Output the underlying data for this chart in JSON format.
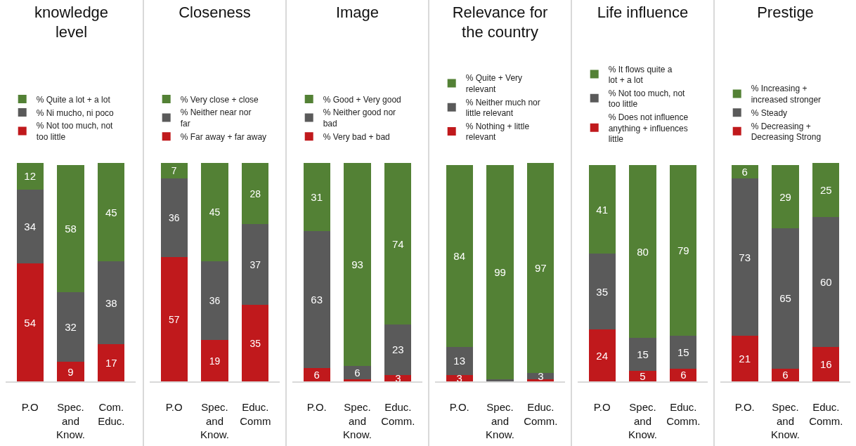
{
  "chart_data": [
    {
      "type": "bar",
      "title": "knowledge level",
      "stacked": true,
      "legend": "top",
      "categories": [
        "P.O",
        "Spec. and Know.",
        "Com. Educ."
      ],
      "series": [
        {
          "name": "% Not too much, not too little",
          "color": "#c0191c",
          "values": [
            54,
            9,
            17
          ],
          "value_labels": [
            "54",
            "9",
            "17"
          ]
        },
        {
          "name": "% Ni mucho, ni poco",
          "color": "#5a5a5a",
          "values": [
            34,
            32,
            38
          ],
          "value_labels": [
            "34",
            "32",
            "38"
          ]
        },
        {
          "name": "% Quite a lot + a lot",
          "color": "#538135",
          "values": [
            12,
            58,
            45
          ],
          "value_labels": [
            "12",
            "58",
            "45"
          ]
        }
      ]
    },
    {
      "type": "bar",
      "title": "Closeness",
      "stacked": true,
      "legend": "top",
      "categories": [
        "P.O",
        "Spec. and Know.",
        "Educ. Comm"
      ],
      "series": [
        {
          "name": "% Far away + far away",
          "color": "#c0191c",
          "values": [
            57,
            19,
            35
          ],
          "value_labels": [
            "57",
            "19",
            "35"
          ]
        },
        {
          "name": "% Neither near nor far",
          "color": "#5a5a5a",
          "values": [
            36,
            36,
            37
          ],
          "value_labels": [
            "36",
            "36",
            "37"
          ]
        },
        {
          "name": "% Very close + close",
          "color": "#538135",
          "values": [
            7,
            45,
            28
          ],
          "value_labels": [
            "7",
            "45",
            "28"
          ]
        }
      ]
    },
    {
      "type": "bar",
      "title": "Image",
      "stacked": true,
      "legend": "top",
      "categories": [
        "P.O.",
        "Spec. and Know.",
        "Educ. Comm."
      ],
      "series": [
        {
          "name": "% Very bad + bad",
          "color": "#c0191c",
          "values": [
            6,
            1,
            3
          ],
          "value_labels": [
            "6",
            null,
            "3"
          ]
        },
        {
          "name": "% Neither good nor bad",
          "color": "#5a5a5a",
          "values": [
            63,
            6,
            23
          ],
          "value_labels": [
            "63",
            "6",
            "23"
          ]
        },
        {
          "name": "% Good + Very good",
          "color": "#538135",
          "values": [
            31,
            93,
            74
          ],
          "value_labels": [
            "31",
            "93",
            "74"
          ]
        }
      ]
    },
    {
      "type": "bar",
      "title": "Relevance for the country",
      "stacked": true,
      "legend": "top",
      "categories": [
        "P.O.",
        "Spec. and Know.",
        "Educ. Comm."
      ],
      "series": [
        {
          "name": "% Nothing + little relevant",
          "color": "#c0191c",
          "values": [
            3,
            0,
            1
          ],
          "value_labels": [
            "3",
            null,
            null
          ]
        },
        {
          "name": "% Neither much nor little relevant",
          "color": "#5a5a5a",
          "values": [
            13,
            1,
            3
          ],
          "value_labels": [
            "13",
            null,
            "3"
          ]
        },
        {
          "name": "% Quite + Very relevant",
          "color": "#538135",
          "values": [
            84,
            99,
            97
          ],
          "value_labels": [
            "84",
            "99",
            "97"
          ]
        }
      ]
    },
    {
      "type": "bar",
      "title": "Life influence",
      "stacked": true,
      "legend": "top",
      "categories": [
        "P.O",
        "Spec. and Know.",
        "Educ. Comm."
      ],
      "series": [
        {
          "name": "% Does not influence anything + influences little",
          "color": "#c0191c",
          "values": [
            24,
            5,
            6
          ],
          "value_labels": [
            "24",
            "5",
            "6"
          ]
        },
        {
          "name": "% Not too much, not too little",
          "color": "#5a5a5a",
          "values": [
            35,
            15,
            15
          ],
          "value_labels": [
            "35",
            "15",
            "15"
          ]
        },
        {
          "name": "% It flows quite a lot + a lot",
          "color": "#538135",
          "values": [
            41,
            80,
            79
          ],
          "value_labels": [
            "41",
            "80",
            "79"
          ]
        }
      ]
    },
    {
      "type": "bar",
      "title": "Prestige",
      "stacked": true,
      "legend": "top",
      "categories": [
        "P.O.",
        "Spec. and Know.",
        "Educ. Comm."
      ],
      "series": [
        {
          "name": "% Decreasing + Decreasing Strong",
          "color": "#c0191c",
          "values": [
            21,
            6,
            16
          ],
          "value_labels": [
            "21",
            "6",
            "16"
          ]
        },
        {
          "name": "% Steady",
          "color": "#5a5a5a",
          "values": [
            73,
            65,
            60
          ],
          "value_labels": [
            "73",
            "65",
            "60"
          ]
        },
        {
          "name": "% Increasing + increased stronger",
          "color": "#538135",
          "values": [
            6,
            29,
            25
          ],
          "value_labels": [
            "6",
            "29",
            "25"
          ]
        }
      ]
    }
  ]
}
